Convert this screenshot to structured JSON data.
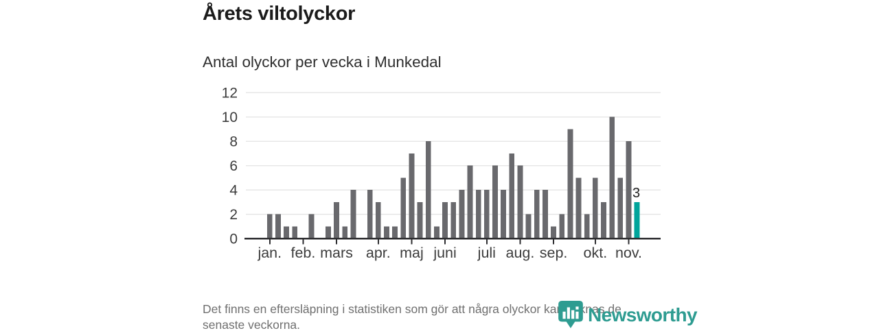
{
  "header": {
    "title": "Årets viltolyckor",
    "subtitle": "Antal olyckor per vecka i Munkedal"
  },
  "chart_data": {
    "type": "bar",
    "title": "Årets viltolyckor",
    "subtitle": "Antal olyckor per vecka i Munkedal",
    "x_unit": "vecka (week 1–45)",
    "values": [
      2,
      2,
      1,
      1,
      0,
      2,
      0,
      1,
      3,
      1,
      4,
      0,
      4,
      3,
      1,
      1,
      5,
      7,
      3,
      8,
      1,
      3,
      3,
      4,
      6,
      4,
      4,
      6,
      4,
      7,
      6,
      2,
      4,
      4,
      1,
      2,
      9,
      5,
      2,
      5,
      3,
      10,
      5,
      8,
      3
    ],
    "month_ticks": [
      {
        "label": "jan.",
        "week": 1
      },
      {
        "label": "feb.",
        "week": 5
      },
      {
        "label": "mars",
        "week": 9
      },
      {
        "label": "apr.",
        "week": 14
      },
      {
        "label": "maj",
        "week": 18
      },
      {
        "label": "juni",
        "week": 22
      },
      {
        "label": "juli",
        "week": 27
      },
      {
        "label": "aug.",
        "week": 31
      },
      {
        "label": "sep.",
        "week": 35
      },
      {
        "label": "okt.",
        "week": 40
      },
      {
        "label": "nov.",
        "week": 44
      }
    ],
    "yticks": [
      0,
      2,
      4,
      6,
      8,
      10,
      12
    ],
    "ylim": [
      0,
      12
    ],
    "grid": true,
    "legend": "none",
    "bar_color": "#69696d",
    "highlight_color": "#00a49b",
    "highlight_index": 44,
    "highlight_value_label": "3",
    "axis_color": "#2d2d30",
    "grid_color": "#e7e7e7",
    "tick_label_color": "#3c3c3c"
  },
  "footer": {
    "note_lines": [
      "Det finns en eftersläpning i statistiken som gör att några olyckor kan saknas de",
      "senaste veckorna."
    ]
  },
  "logo": {
    "text": "Newsworthy",
    "color": "#2e9c91"
  }
}
